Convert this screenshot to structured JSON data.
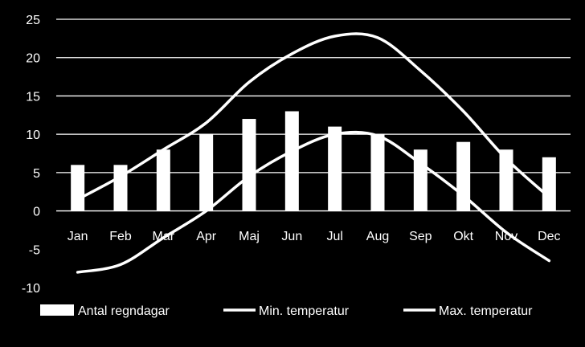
{
  "chart_data": {
    "type": "bar",
    "categories": [
      "Jan",
      "Feb",
      "Mar",
      "Apr",
      "Maj",
      "Jun",
      "Jul",
      "Aug",
      "Sep",
      "Okt",
      "Nov",
      "Dec"
    ],
    "series": [
      {
        "name": "Antal regndagar",
        "type": "bar",
        "values": [
          6,
          6,
          8,
          10,
          12,
          13,
          11,
          10,
          8,
          9,
          8,
          7
        ]
      },
      {
        "name": "Min. temperatur",
        "type": "line",
        "values": [
          -8,
          -7,
          -3.5,
          0,
          4.5,
          7.8,
          10,
          9.8,
          6.2,
          2,
          -2.8,
          -6.5
        ]
      },
      {
        "name": "Max. temperatur",
        "type": "line",
        "values": [
          1.5,
          4.5,
          8,
          11.5,
          16.8,
          20.5,
          22.8,
          22.6,
          18.3,
          13,
          6.8,
          1.8
        ]
      }
    ],
    "ylim": [
      -10,
      25
    ],
    "yticks": [
      -10,
      -5,
      0,
      5,
      10,
      15,
      20,
      25
    ],
    "grid": true,
    "legend": "bottom",
    "colors": {
      "background": "#000000",
      "bars": "#ffffff",
      "lines": "#ffffff",
      "grid": "#ffffff",
      "text": "#ffffff"
    }
  }
}
